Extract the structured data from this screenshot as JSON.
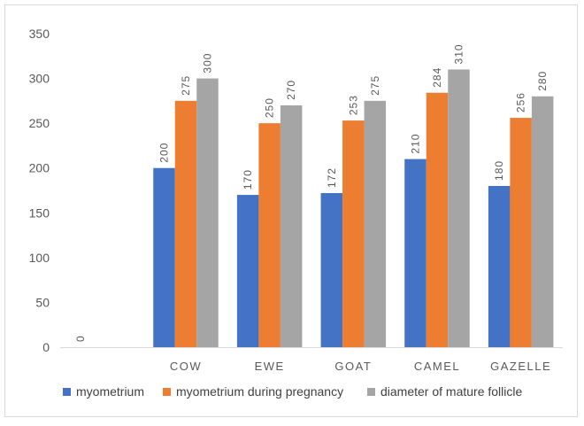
{
  "chart_data": {
    "type": "bar",
    "title": "",
    "xlabel": "",
    "ylabel": "",
    "ylim": [
      0,
      350
    ],
    "yticks": [
      "0",
      "50",
      "100",
      "150",
      "200",
      "250",
      "300",
      "350"
    ],
    "grid": false,
    "legend_position": "bottom",
    "categories": [
      "",
      "COW",
      "EWE",
      "GOAT",
      "CAMEL",
      "GAZELLE"
    ],
    "series": [
      {
        "name": "myometrium",
        "color": "#4472c4",
        "values": [
          0,
          200,
          170,
          172,
          210,
          180
        ]
      },
      {
        "name": "myometrium during pregnancy",
        "color": "#ed7d31",
        "values": [
          null,
          275,
          250,
          253,
          284,
          256
        ]
      },
      {
        "name": "diameter of mature follicle",
        "color": "#a5a5a5",
        "values": [
          null,
          300,
          270,
          275,
          310,
          280
        ]
      }
    ]
  }
}
